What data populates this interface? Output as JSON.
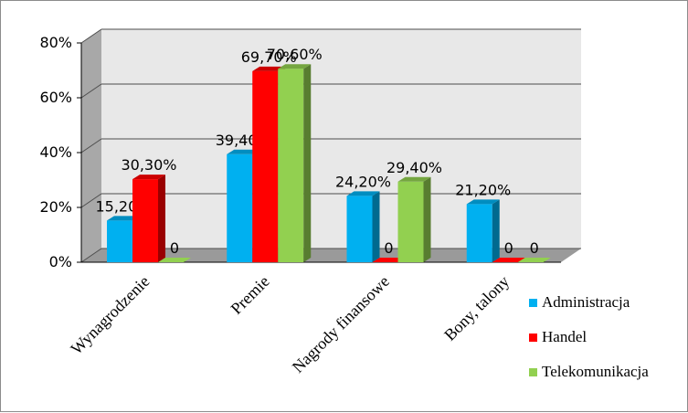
{
  "chart_data": {
    "type": "bar",
    "categories": [
      "Wynagrodzenie",
      "Premie",
      "Nagrody finansowe",
      "Bony, talony"
    ],
    "series": [
      {
        "name": "Administracja",
        "values": [
          15.2,
          39.4,
          24.2,
          21.2
        ],
        "labels": [
          "15,20%",
          "39,40%",
          "24,20%",
          "21,20%"
        ],
        "color": "#00b0f0"
      },
      {
        "name": "Handel",
        "values": [
          30.3,
          69.7,
          0,
          0
        ],
        "labels": [
          "30,30%",
          "69,70%",
          "0",
          "0"
        ],
        "color": "#ff0000"
      },
      {
        "name": "Telekomunikacja",
        "values": [
          0,
          70.6,
          29.4,
          0
        ],
        "labels": [
          "0",
          "70,60%",
          "29,40%",
          "0"
        ],
        "color": "#92d050"
      }
    ],
    "yticks": [
      "0%",
      "20%",
      "40%",
      "60%",
      "80%"
    ],
    "ylim": [
      0,
      80
    ],
    "grid": true,
    "legend_position": "bottom-right",
    "style": "3d-clustered-column"
  }
}
